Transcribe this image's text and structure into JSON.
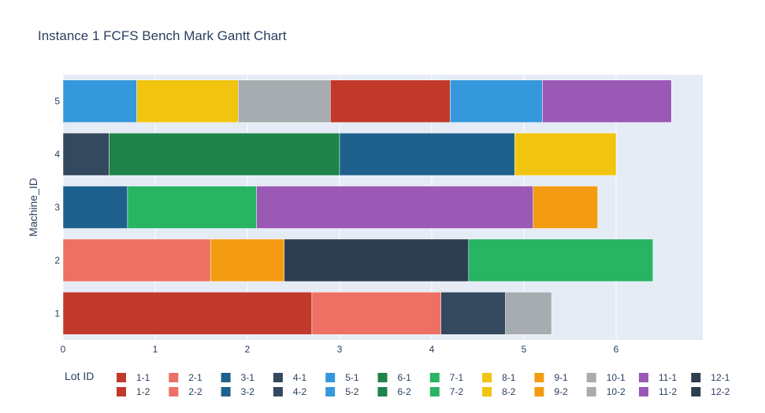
{
  "chart_data": {
    "type": "bar",
    "orientation": "horizontal-gantt",
    "title": "Instance 1 FCFS Bench Mark Gantt Chart",
    "ylabel": "Machine_ID",
    "xlabel": "",
    "xlim": [
      0,
      6.94
    ],
    "x_ticks": [
      "0",
      "1",
      "2",
      "3",
      "4",
      "5",
      "6"
    ],
    "categories": [
      "1",
      "2",
      "3",
      "4",
      "5"
    ],
    "grid": true,
    "legend_title": "Lot ID",
    "legend_position": "bottom",
    "legend": [
      {
        "name": "1-1",
        "color": "#c0392b"
      },
      {
        "name": "2-1",
        "color": "#ec7063"
      },
      {
        "name": "3-1",
        "color": "#1f618d"
      },
      {
        "name": "4-1",
        "color": "#34495e"
      },
      {
        "name": "5-1",
        "color": "#3498db"
      },
      {
        "name": "6-1",
        "color": "#1e8449"
      },
      {
        "name": "7-1",
        "color": "#28b463"
      },
      {
        "name": "8-1",
        "color": "#f1c40f"
      },
      {
        "name": "9-1",
        "color": "#f39c12"
      },
      {
        "name": "10-1",
        "color": "#a6acaf"
      },
      {
        "name": "11-1",
        "color": "#9b59b6"
      },
      {
        "name": "12-1",
        "color": "#2c3e50"
      },
      {
        "name": "1-2",
        "color": "#c0392b"
      },
      {
        "name": "2-2",
        "color": "#ec7063"
      },
      {
        "name": "3-2",
        "color": "#1f618d"
      },
      {
        "name": "4-2",
        "color": "#34495e"
      },
      {
        "name": "5-2",
        "color": "#3498db"
      },
      {
        "name": "6-2",
        "color": "#1e8449"
      },
      {
        "name": "7-2",
        "color": "#28b463"
      },
      {
        "name": "8-2",
        "color": "#f1c40f"
      },
      {
        "name": "9-2",
        "color": "#f39c12"
      },
      {
        "name": "10-2",
        "color": "#a6acaf"
      },
      {
        "name": "11-2",
        "color": "#9b59b6"
      },
      {
        "name": "12-2",
        "color": "#2c3e50"
      }
    ],
    "tasks": [
      {
        "machine": "1",
        "start": 0.0,
        "end": 2.7,
        "color": "#c0392b"
      },
      {
        "machine": "1",
        "start": 2.7,
        "end": 4.1,
        "color": "#ec7063"
      },
      {
        "machine": "1",
        "start": 4.1,
        "end": 4.8,
        "color": "#34495e"
      },
      {
        "machine": "1",
        "start": 4.8,
        "end": 5.3,
        "color": "#a6acaf"
      },
      {
        "machine": "2",
        "start": 0.0,
        "end": 1.6,
        "color": "#ec7063"
      },
      {
        "machine": "2",
        "start": 1.6,
        "end": 2.4,
        "color": "#f39c12"
      },
      {
        "machine": "2",
        "start": 2.4,
        "end": 4.4,
        "color": "#2c3e50"
      },
      {
        "machine": "2",
        "start": 4.4,
        "end": 6.4,
        "color": "#28b463"
      },
      {
        "machine": "3",
        "start": 0.0,
        "end": 0.7,
        "color": "#1f618d"
      },
      {
        "machine": "3",
        "start": 0.7,
        "end": 2.1,
        "color": "#28b463"
      },
      {
        "machine": "3",
        "start": 2.1,
        "end": 5.1,
        "color": "#9b59b6"
      },
      {
        "machine": "3",
        "start": 5.1,
        "end": 5.8,
        "color": "#f39c12"
      },
      {
        "machine": "4",
        "start": 0.0,
        "end": 0.5,
        "color": "#34495e"
      },
      {
        "machine": "4",
        "start": 0.5,
        "end": 3.0,
        "color": "#1e8449"
      },
      {
        "machine": "4",
        "start": 3.0,
        "end": 4.9,
        "color": "#1f618d"
      },
      {
        "machine": "4",
        "start": 4.9,
        "end": 6.0,
        "color": "#f1c40f"
      },
      {
        "machine": "5",
        "start": 0.0,
        "end": 0.8,
        "color": "#3498db"
      },
      {
        "machine": "5",
        "start": 0.8,
        "end": 1.9,
        "color": "#f1c40f"
      },
      {
        "machine": "5",
        "start": 1.9,
        "end": 2.9,
        "color": "#a6acaf"
      },
      {
        "machine": "5",
        "start": 2.9,
        "end": 4.2,
        "color": "#c0392b"
      },
      {
        "machine": "5",
        "start": 4.2,
        "end": 5.2,
        "color": "#3498db"
      },
      {
        "machine": "5",
        "start": 5.2,
        "end": 6.6,
        "color": "#9b59b6"
      }
    ]
  }
}
